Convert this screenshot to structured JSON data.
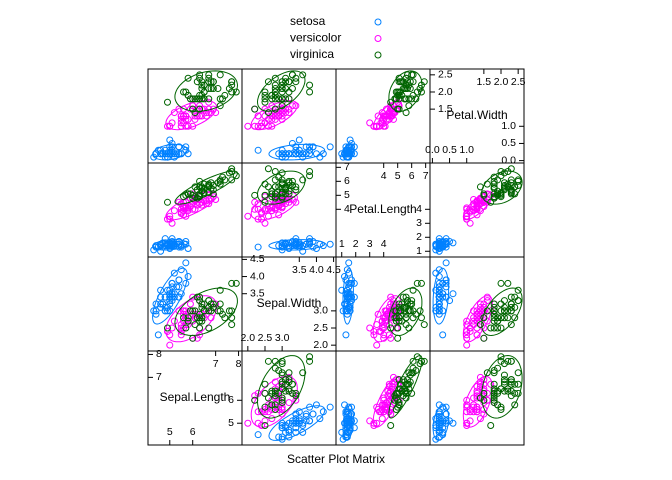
{
  "chart_data": {
    "type": "splom",
    "xlab": "Scatter Plot Matrix",
    "variables": [
      {
        "name": "Sepal.Length",
        "lim": [
          4.05,
          8.15
        ],
        "lower_ticks": [
          5,
          6
        ],
        "upper_ticks": [
          7,
          8
        ]
      },
      {
        "name": "Sepal.Width",
        "lim": [
          1.83,
          4.57
        ],
        "lower_ticks": [
          {
            "value": 2,
            "label": "2.0"
          },
          2.5,
          {
            "value": 3,
            "label": "3.0"
          }
        ],
        "upper_ticks": [
          3.5,
          {
            "value": 4,
            "label": "4.0"
          },
          4.5
        ]
      },
      {
        "name": "Petal.Length",
        "lim": [
          0.59,
          7.31
        ],
        "lower_ticks": [
          1,
          2,
          3,
          4
        ],
        "upper_ticks": [
          4,
          5,
          6,
          7
        ]
      },
      {
        "name": "Petal.Width",
        "lim": [
          -0.07,
          2.67
        ],
        "lower_ticks": [
          {
            "value": 0,
            "label": "0.0"
          },
          0.5,
          {
            "value": 1,
            "label": "1.0"
          }
        ],
        "upper_ticks": [
          1.5,
          {
            "value": 2,
            "label": "2.0"
          },
          2.5
        ]
      }
    ],
    "series": [
      {
        "name": "setosa",
        "color": "#0080ff",
        "values": [
          [
            5.1,
            4.9,
            4.7,
            4.6,
            5.0,
            5.4,
            4.6,
            5.0,
            4.4,
            4.9,
            5.4,
            4.8,
            4.8,
            4.3,
            5.8,
            5.7,
            5.4,
            5.1,
            5.7,
            5.1,
            5.4,
            5.1,
            4.6,
            5.1,
            4.8,
            5.0,
            5.0,
            5.2,
            5.2,
            4.7,
            4.8,
            5.4,
            5.2,
            5.5,
            4.9,
            5.0,
            5.5,
            4.9,
            4.4,
            5.1,
            5.0,
            4.5,
            4.4,
            5.0,
            5.1,
            4.8,
            5.1,
            4.6,
            5.3,
            5.0
          ],
          [
            3.5,
            3.0,
            3.2,
            3.1,
            3.6,
            3.9,
            3.4,
            3.4,
            2.9,
            3.1,
            3.7,
            3.4,
            3.0,
            3.0,
            4.0,
            4.4,
            3.9,
            3.5,
            3.8,
            3.8,
            3.4,
            3.7,
            3.6,
            3.3,
            3.4,
            3.0,
            3.4,
            3.5,
            3.4,
            3.2,
            3.1,
            3.4,
            4.1,
            4.2,
            3.1,
            3.2,
            3.5,
            3.6,
            3.0,
            3.4,
            3.5,
            2.3,
            3.2,
            3.5,
            3.8,
            3.0,
            3.8,
            3.2,
            3.7,
            3.3
          ],
          [
            1.4,
            1.4,
            1.3,
            1.5,
            1.4,
            1.7,
            1.4,
            1.5,
            1.4,
            1.5,
            1.5,
            1.6,
            1.4,
            1.1,
            1.2,
            1.5,
            1.3,
            1.4,
            1.7,
            1.5,
            1.7,
            1.5,
            1.0,
            1.7,
            1.9,
            1.6,
            1.6,
            1.5,
            1.4,
            1.6,
            1.6,
            1.5,
            1.5,
            1.4,
            1.5,
            1.2,
            1.3,
            1.4,
            1.3,
            1.5,
            1.3,
            1.3,
            1.3,
            1.6,
            1.9,
            1.4,
            1.6,
            1.4,
            1.5,
            1.4
          ],
          [
            0.2,
            0.2,
            0.2,
            0.2,
            0.2,
            0.4,
            0.3,
            0.2,
            0.2,
            0.1,
            0.2,
            0.2,
            0.1,
            0.1,
            0.2,
            0.4,
            0.4,
            0.3,
            0.3,
            0.3,
            0.2,
            0.4,
            0.2,
            0.5,
            0.2,
            0.2,
            0.4,
            0.2,
            0.2,
            0.2,
            0.2,
            0.4,
            0.1,
            0.2,
            0.2,
            0.2,
            0.2,
            0.1,
            0.2,
            0.2,
            0.3,
            0.3,
            0.2,
            0.6,
            0.4,
            0.3,
            0.2,
            0.2,
            0.2,
            0.2
          ]
        ]
      },
      {
        "name": "versicolor",
        "color": "#ff00ff",
        "values": [
          [
            7.0,
            6.4,
            6.9,
            5.5,
            6.5,
            5.7,
            6.3,
            4.9,
            6.6,
            5.2,
            5.0,
            5.9,
            6.0,
            6.1,
            5.6,
            6.7,
            5.6,
            5.8,
            6.2,
            5.6,
            5.9,
            6.1,
            6.3,
            6.1,
            6.4,
            6.6,
            6.8,
            6.7,
            6.0,
            5.7,
            5.5,
            5.5,
            5.8,
            6.0,
            5.4,
            6.0,
            6.7,
            6.3,
            5.6,
            5.5,
            5.5,
            6.1,
            5.8,
            5.0,
            5.6,
            5.7,
            5.7,
            6.2,
            5.1,
            5.7
          ],
          [
            3.2,
            3.2,
            3.1,
            2.3,
            2.8,
            2.8,
            3.3,
            2.4,
            2.9,
            2.7,
            2.0,
            3.0,
            2.2,
            2.9,
            2.9,
            3.1,
            3.0,
            2.7,
            2.2,
            2.5,
            3.2,
            2.8,
            2.5,
            2.8,
            2.9,
            3.0,
            2.8,
            3.0,
            2.9,
            2.6,
            2.4,
            2.4,
            2.7,
            2.7,
            3.0,
            3.4,
            3.1,
            2.3,
            3.0,
            2.5,
            2.6,
            3.0,
            2.6,
            2.3,
            2.7,
            3.0,
            2.9,
            2.9,
            2.5,
            2.8
          ],
          [
            4.7,
            4.5,
            4.9,
            4.0,
            4.6,
            4.5,
            4.7,
            3.3,
            4.6,
            3.9,
            3.5,
            4.2,
            4.0,
            4.7,
            3.6,
            4.4,
            4.5,
            4.1,
            4.5,
            3.9,
            4.8,
            4.0,
            4.9,
            4.7,
            4.3,
            4.4,
            4.8,
            5.0,
            4.5,
            3.5,
            3.8,
            3.7,
            3.9,
            5.1,
            4.5,
            4.5,
            4.7,
            4.4,
            4.1,
            4.0,
            4.4,
            4.6,
            4.0,
            3.3,
            4.2,
            4.2,
            4.2,
            4.3,
            3.0,
            4.1
          ],
          [
            1.4,
            1.5,
            1.5,
            1.3,
            1.5,
            1.3,
            1.6,
            1.0,
            1.3,
            1.4,
            1.0,
            1.5,
            1.0,
            1.4,
            1.3,
            1.4,
            1.5,
            1.0,
            1.5,
            1.1,
            1.8,
            1.3,
            1.5,
            1.2,
            1.3,
            1.4,
            1.4,
            1.7,
            1.5,
            1.0,
            1.1,
            1.0,
            1.2,
            1.6,
            1.5,
            1.6,
            1.5,
            1.3,
            1.3,
            1.3,
            1.2,
            1.4,
            1.2,
            1.0,
            1.3,
            1.2,
            1.3,
            1.3,
            1.1,
            1.3
          ]
        ]
      },
      {
        "name": "virginica",
        "color": "#006400",
        "values": [
          [
            6.3,
            5.8,
            7.1,
            6.3,
            6.5,
            7.6,
            4.9,
            7.3,
            6.7,
            7.2,
            6.5,
            6.4,
            6.8,
            5.7,
            5.8,
            6.4,
            6.5,
            7.7,
            7.7,
            6.0,
            6.9,
            5.6,
            7.7,
            6.3,
            6.7,
            7.2,
            6.2,
            6.1,
            6.4,
            7.2,
            7.4,
            7.9,
            6.4,
            6.3,
            6.1,
            7.7,
            6.3,
            6.4,
            6.0,
            6.9,
            6.7,
            6.9,
            5.8,
            6.8,
            6.7,
            6.7,
            6.3,
            6.5,
            6.2,
            5.9
          ],
          [
            3.3,
            2.7,
            3.0,
            2.9,
            3.0,
            3.0,
            2.5,
            2.9,
            2.5,
            3.6,
            3.2,
            2.7,
            3.0,
            2.5,
            2.8,
            3.2,
            3.0,
            3.8,
            2.6,
            2.2,
            3.2,
            2.8,
            2.8,
            2.7,
            3.3,
            3.2,
            2.8,
            3.0,
            2.8,
            3.0,
            2.8,
            3.8,
            2.8,
            2.8,
            2.6,
            3.0,
            3.4,
            3.1,
            3.0,
            3.1,
            3.1,
            3.1,
            2.7,
            3.2,
            3.3,
            3.0,
            2.5,
            3.0,
            3.4,
            3.0
          ],
          [
            6.0,
            5.1,
            5.9,
            5.6,
            5.8,
            6.6,
            4.5,
            6.3,
            5.8,
            6.1,
            5.1,
            5.3,
            5.5,
            5.0,
            5.1,
            5.3,
            5.5,
            6.7,
            6.9,
            5.0,
            5.7,
            4.9,
            6.7,
            4.9,
            5.7,
            6.0,
            4.8,
            4.9,
            5.6,
            5.8,
            6.1,
            6.4,
            5.6,
            5.1,
            5.6,
            6.1,
            5.6,
            5.5,
            4.8,
            5.4,
            5.6,
            5.1,
            5.1,
            5.9,
            5.7,
            5.2,
            5.0,
            5.2,
            5.4,
            5.1
          ],
          [
            2.5,
            1.9,
            2.1,
            1.8,
            2.2,
            2.1,
            1.7,
            1.8,
            1.8,
            2.5,
            2.0,
            1.9,
            2.1,
            2.0,
            2.4,
            2.3,
            1.8,
            2.2,
            2.3,
            1.5,
            2.3,
            2.0,
            2.0,
            1.8,
            2.1,
            1.8,
            1.8,
            1.8,
            2.1,
            1.6,
            1.9,
            2.0,
            2.2,
            1.5,
            1.4,
            2.3,
            2.4,
            1.8,
            1.8,
            2.1,
            2.4,
            2.3,
            1.9,
            2.3,
            2.5,
            2.3,
            1.9,
            2.0,
            2.3,
            1.8
          ]
        ]
      }
    ]
  }
}
